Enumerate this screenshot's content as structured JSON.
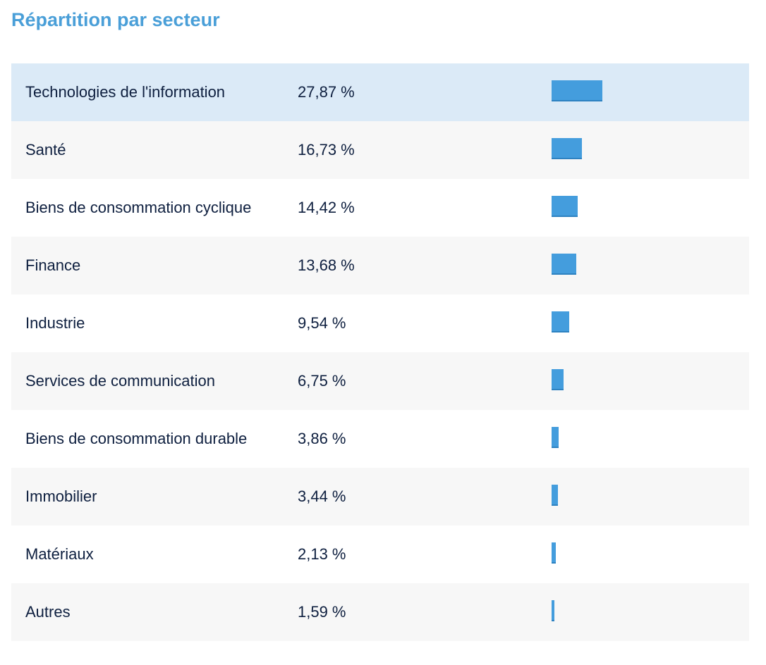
{
  "title": "Répartition par secteur",
  "colors": {
    "title": "#4a9fd8",
    "bar": "#449ddd",
    "highlight_row": "#dbeaf7",
    "text": "#0e1f3f"
  },
  "chart_data": {
    "type": "bar",
    "orientation": "horizontal",
    "title": "Répartition par secteur",
    "categories": [
      "Technologies de l'information",
      "Santé",
      "Biens de consommation cyclique",
      "Finance",
      "Industrie",
      "Services de communication",
      "Biens de consommation durable",
      "Immobilier",
      "Matériaux",
      "Autres"
    ],
    "values": [
      27.87,
      16.73,
      14.42,
      13.68,
      9.54,
      6.75,
      3.86,
      3.44,
      2.13,
      1.59
    ],
    "value_labels": [
      "27,87 %",
      "16,73 %",
      "14,42 %",
      "13,68 %",
      "9,54 %",
      "6,75 %",
      "3,86 %",
      "3,44 %",
      "2,13 %",
      "1,59 %"
    ],
    "unit": "%",
    "highlighted_index": 0,
    "grid": false
  }
}
